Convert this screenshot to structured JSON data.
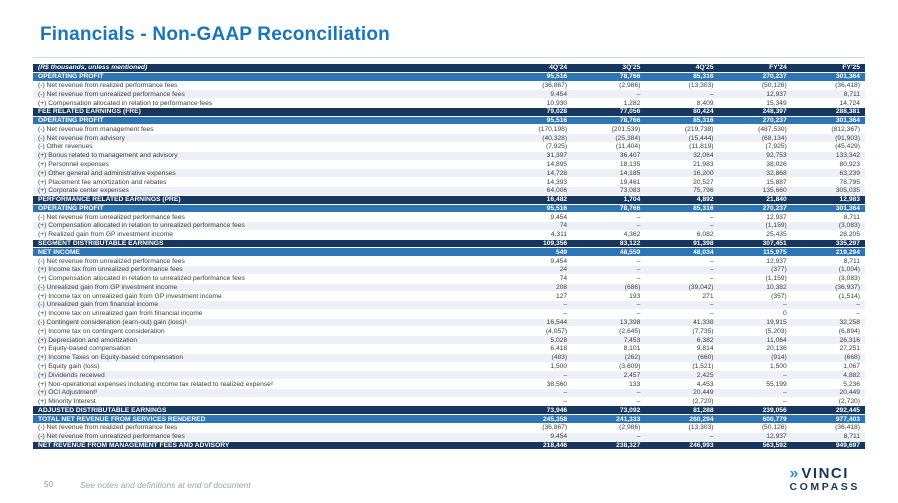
{
  "page": {
    "title": "Financials - Non-GAAP Reconciliation",
    "page_number": "50",
    "footnote": "See notes and definitions at end of document",
    "logo": {
      "line1": "VINCI",
      "line2": "COMPASS",
      "mark_icon": "double-chevron-icon"
    }
  },
  "colors": {
    "navy": "#17375E",
    "blue": "#2E75B6",
    "stripe": "#EDF1F7",
    "titleblue": "#1B75BB",
    "text": "#3b3b3b"
  },
  "table": {
    "header": {
      "label": "(R$ thousands, unless mentioned)",
      "cols": [
        "4Q'24",
        "3Q'25",
        "4Q'25",
        "FY'24",
        "FY'25"
      ]
    },
    "rows": [
      {
        "type": "blue",
        "label": "OPERATING PROFIT",
        "values": [
          "95,516",
          "78,766",
          "85,316",
          "270,237",
          "301,364"
        ]
      },
      {
        "type": "normal",
        "label": "(-) Net revenue from realized performance fees",
        "values": [
          "(36,867)",
          "(2,986)",
          "(13,303)",
          "(50,126)",
          "(36,418)"
        ]
      },
      {
        "type": "normal",
        "label": "(-) Net revenue from unrealized performance fees",
        "values": [
          "9,454",
          "–",
          "–",
          "12,937",
          "8,711"
        ]
      },
      {
        "type": "normal",
        "label": "(+) Compensation allocated in relation to performance fees",
        "values": [
          "10,930",
          "1,282",
          "8,409",
          "15,349",
          "14,724"
        ]
      },
      {
        "type": "navy",
        "label": "FEE RELATED EARNINGS (FRE)",
        "values": [
          "79,028",
          "77,056",
          "80,424",
          "248,397",
          "288,381"
        ]
      },
      {
        "type": "blue",
        "label": "OPERATING PROFIT",
        "values": [
          "95,516",
          "78,766",
          "85,316",
          "270,237",
          "301,364"
        ]
      },
      {
        "type": "normal",
        "label": "(-) Net revenue from management fees",
        "values": [
          "(170,198)",
          "(201,539)",
          "(219,738)",
          "(487,530)",
          "(812,367)"
        ]
      },
      {
        "type": "normal",
        "label": "(-) Net revenue from advisory",
        "values": [
          "(40,328)",
          "(25,384)",
          "(15,444)",
          "(68,134)",
          "(91,903)"
        ]
      },
      {
        "type": "normal",
        "label": "(-) Other revenues",
        "values": [
          "(7,925)",
          "(11,404)",
          "(11,819)",
          "(7,925)",
          "(45,429)"
        ]
      },
      {
        "type": "normal",
        "label": "(+) Bonus related to management and advisory",
        "values": [
          "31,397",
          "36,407",
          "32,064",
          "92,753",
          "133,342"
        ]
      },
      {
        "type": "normal",
        "label": "(+) Personnel expenses",
        "values": [
          "14,895",
          "18,135",
          "21,983",
          "38,026",
          "80,923"
        ]
      },
      {
        "type": "normal",
        "label": "(+) Other general and administrative expenses",
        "values": [
          "14,728",
          "14,185",
          "16,200",
          "32,868",
          "63,239"
        ]
      },
      {
        "type": "normal",
        "label": "(+) Placement fee amortization and rebates",
        "values": [
          "14,393",
          "19,461",
          "20,527",
          "15,887",
          "78,795"
        ]
      },
      {
        "type": "normal",
        "label": "(+) Corporate center expenses",
        "values": [
          "64,006",
          "73,083",
          "75,796",
          "135,660",
          "305,035"
        ]
      },
      {
        "type": "navy",
        "label": "PERFORMANCE RELATED EARNINGS (PRE)",
        "values": [
          "16,482",
          "1,704",
          "4,892",
          "21,840",
          "12,983"
        ]
      },
      {
        "type": "blue",
        "label": "OPERATING PROFIT",
        "values": [
          "95,516",
          "78,766",
          "85,316",
          "270,237",
          "301,364"
        ]
      },
      {
        "type": "normal",
        "label": "(-) Net revenue from unrealized performance fees",
        "values": [
          "9,454",
          "–",
          "–",
          "12,937",
          "8,711"
        ]
      },
      {
        "type": "normal",
        "label": "(+) Compensation allocated in relation to unrealized performance fees",
        "values": [
          "74",
          "–",
          "–",
          "(1,159)",
          "(3,083)"
        ]
      },
      {
        "type": "normal",
        "label": "(+) Realized gain from GP investment income",
        "values": [
          "4,311",
          "4,362",
          "6,082",
          "25,435",
          "28,205"
        ]
      },
      {
        "type": "navy",
        "label": "SEGMENT DISTRIBUTABLE EARNINGS",
        "values": [
          "109,356",
          "83,122",
          "91,398",
          "307,451",
          "335,297"
        ]
      },
      {
        "type": "blue",
        "label": "NET INCOME",
        "values": [
          "549",
          "48,559",
          "48,034",
          "115,975",
          "219,294"
        ]
      },
      {
        "type": "normal",
        "label": "(-) Net revenue from unrealized performance fees",
        "values": [
          "9,454",
          "–",
          "–",
          "12,937",
          "8,711"
        ]
      },
      {
        "type": "normal",
        "label": "(+) Income tax from unrealized performance fees",
        "values": [
          "24",
          "–",
          "–",
          "(377)",
          "(1,004)"
        ]
      },
      {
        "type": "normal",
        "label": "(+) Compensation allocated in relation to unrealized performance fees",
        "values": [
          "74",
          "–",
          "–",
          "(1,159)",
          "(3,083)"
        ]
      },
      {
        "type": "normal",
        "label": "(-) Unrealized gain from GP investment income",
        "values": [
          "208",
          "(686)",
          "(39,042)",
          "10,382",
          "(36,937)"
        ]
      },
      {
        "type": "normal",
        "label": "(+) Income tax on unrealized gain from GP investment income",
        "values": [
          "127",
          "193",
          "271",
          "(357)",
          "(1,514)"
        ]
      },
      {
        "type": "normal",
        "label": "(-) Unrealized gain from financial income",
        "values": [
          "–",
          "–",
          "–",
          "–",
          "–"
        ]
      },
      {
        "type": "normal",
        "label": "(+) Income tax on unrealized gain from financial income",
        "values": [
          "–",
          "–",
          "–",
          "0",
          "–"
        ]
      },
      {
        "type": "normal",
        "label": "(-) Contingent consideration (earn-out) gain (loss)¹",
        "values": [
          "16,544",
          "13,398",
          "41,338",
          "19,915",
          "32,258"
        ]
      },
      {
        "type": "normal",
        "label": "(+) Income tax on contingent consideration",
        "values": [
          "(4,057)",
          "(2,645)",
          "(7,735)",
          "(5,203)",
          "(6,894)"
        ]
      },
      {
        "type": "normal",
        "label": "(+) Depreciation and amortization",
        "values": [
          "5,028",
          "7,453",
          "6,382",
          "11,064",
          "26,316"
        ]
      },
      {
        "type": "normal",
        "label": "(+) Equity-based compensation",
        "values": [
          "6,418",
          "8,101",
          "9,814",
          "20,136",
          "27,251"
        ]
      },
      {
        "type": "normal",
        "label": "(+) Income Taxes on Equity-based compensation",
        "values": [
          "(483)",
          "(262)",
          "(660)",
          "(914)",
          "(668)"
        ]
      },
      {
        "type": "normal",
        "label": "(+) Equity gain (loss)",
        "values": [
          "1,500",
          "(3,609)",
          "(1,521)",
          "1,500",
          "1,067"
        ]
      },
      {
        "type": "normal",
        "label": "(+) Dividends received",
        "values": [
          "–",
          "2,457",
          "2,425",
          "–",
          "4,882"
        ]
      },
      {
        "type": "normal",
        "label": "(+) Non-operational expenses including income tax related to realized expense²",
        "values": [
          "38,560",
          "133",
          "4,453",
          "55,199",
          "5,236"
        ]
      },
      {
        "type": "normal",
        "label": "(+) OCI Adjustment³",
        "values": [
          "–",
          "–",
          "20,449",
          "–",
          "20,449"
        ]
      },
      {
        "type": "normal",
        "label": "(+) Minority Interest",
        "values": [
          "–",
          "–",
          "(2,720)",
          "–",
          "(2,720)"
        ]
      },
      {
        "type": "navy",
        "label": "ADJUSTED DISTRIBUTABLE EARNINGS",
        "values": [
          "73,946",
          "73,092",
          "81,288",
          "239,056",
          "292,445"
        ]
      },
      {
        "type": "blue",
        "label": "TOTAL NET REVENUE FROM SERVICES RENDERED",
        "values": [
          "245,358",
          "241,333",
          "260,294",
          "600,779",
          "977,403"
        ]
      },
      {
        "type": "normal",
        "label": "(-) Net revenue from realized performance fees",
        "values": [
          "(36,867)",
          "(2,986)",
          "(13,303)",
          "(50,126)",
          "(36,418)"
        ]
      },
      {
        "type": "normal",
        "label": "(-) Net revenue from unrealized performance fees",
        "values": [
          "9,454",
          "–",
          "–",
          "12,937",
          "8,711"
        ]
      },
      {
        "type": "navy",
        "label": "NET REVENUE FROM MANAGEMENT FEES AND ADVISORY",
        "values": [
          "218,446",
          "238,327",
          "246,993",
          "563,592",
          "949,697"
        ]
      }
    ]
  }
}
